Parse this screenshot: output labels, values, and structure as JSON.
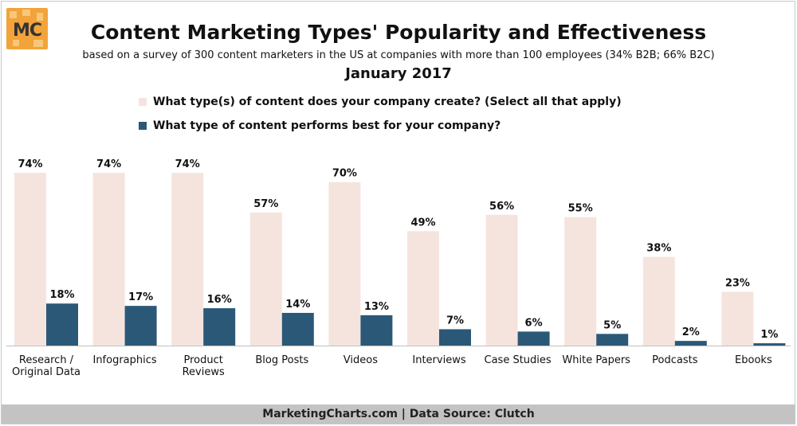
{
  "logo": {
    "text": "MC",
    "bg_color": "#f2a33a"
  },
  "header": {
    "title": "Content Marketing Types' Popularity and Effectiveness",
    "subtitle": "based on a survey of 300 content marketers in the US at companies with more than 100 employees (34% B2B; 66% B2C)",
    "date": "January 2017"
  },
  "footer": {
    "text": "MarketingCharts.com | Data Source: Clutch"
  },
  "chart_data": {
    "type": "bar",
    "categories": [
      "Research / Original Data",
      "Infographics",
      "Product Reviews",
      "Blog Posts",
      "Videos",
      "Interviews",
      "Case Studies",
      "White Papers",
      "Podcasts",
      "Ebooks"
    ],
    "category_lines": [
      [
        "Research /",
        "Original Data"
      ],
      [
        "Infographics"
      ],
      [
        "Product",
        "Reviews"
      ],
      [
        "Blog Posts"
      ],
      [
        "Videos"
      ],
      [
        "Interviews"
      ],
      [
        "Case Studies"
      ],
      [
        "White Papers"
      ],
      [
        "Podcasts"
      ],
      [
        "Ebooks"
      ]
    ],
    "series": [
      {
        "name": "What type(s) of content does your company create? (Select all that apply)",
        "color": "#f5e4dd",
        "values": [
          74,
          74,
          74,
          57,
          70,
          49,
          56,
          55,
          38,
          23
        ],
        "labels": [
          "74%",
          "74%",
          "74%",
          "57%",
          "70%",
          "49%",
          "56%",
          "55%",
          "38%",
          "23%"
        ]
      },
      {
        "name": "What type of content performs best for your company?",
        "color": "#2c5878",
        "values": [
          18,
          17,
          16,
          14,
          13,
          7,
          6,
          5,
          2,
          1
        ],
        "labels": [
          "18%",
          "17%",
          "16%",
          "14%",
          "13%",
          "7%",
          "6%",
          "5%",
          "2%",
          "1%"
        ]
      }
    ],
    "ylim": [
      0,
      74
    ],
    "grid": false,
    "legend_position": "top"
  }
}
